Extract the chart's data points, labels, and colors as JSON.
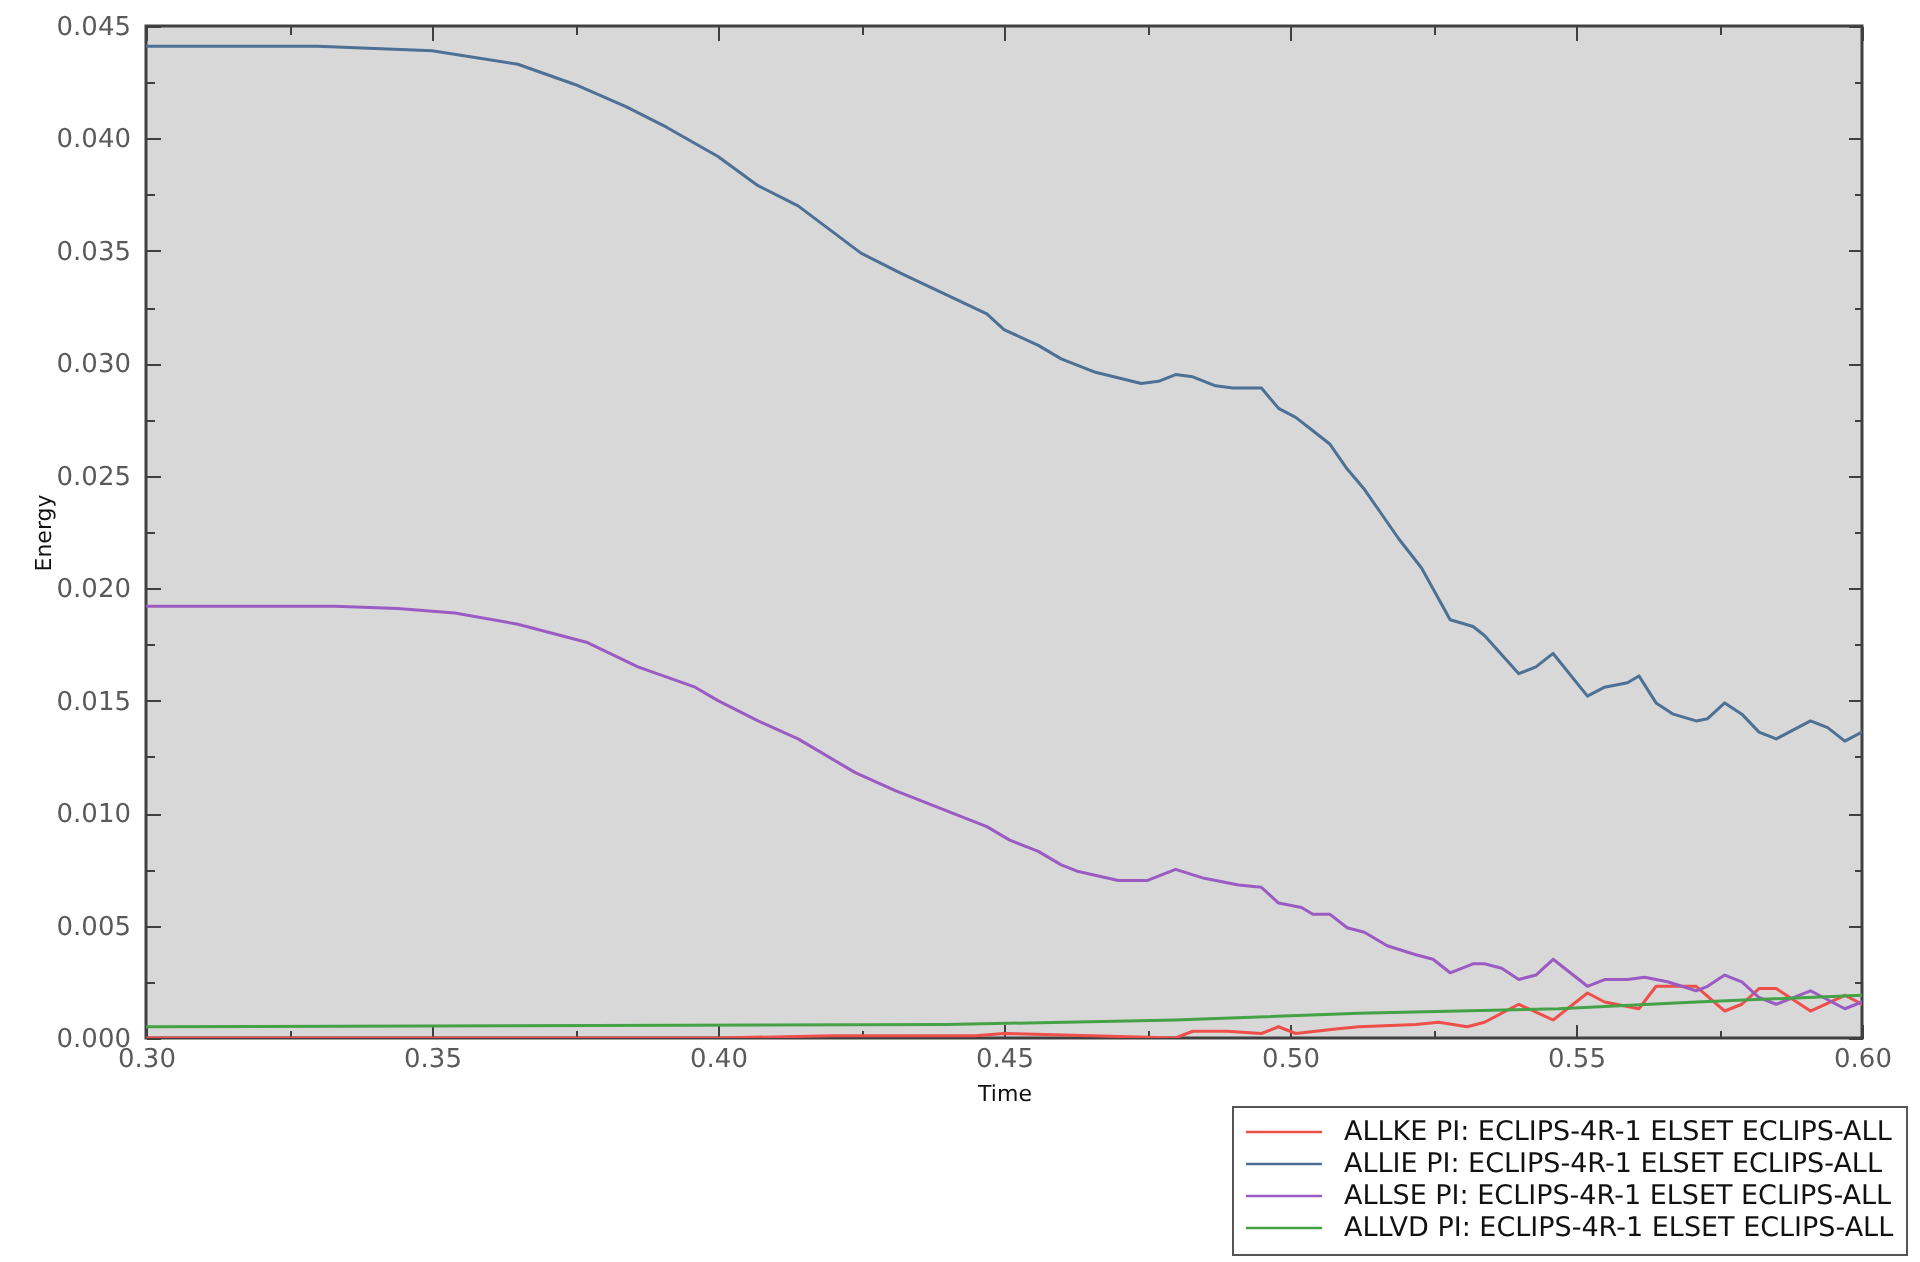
{
  "chart_data": {
    "type": "line",
    "xlabel": "Time",
    "ylabel": "Energy",
    "xlim": [
      0.3,
      0.6
    ],
    "ylim": [
      0,
      0.045
    ],
    "xticks": [
      {
        "value": 0.3,
        "label": "0.30"
      },
      {
        "value": 0.325,
        "label": null
      },
      {
        "value": 0.35,
        "label": "0.35"
      },
      {
        "value": 0.375,
        "label": null
      },
      {
        "value": 0.4,
        "label": "0.40"
      },
      {
        "value": 0.425,
        "label": null
      },
      {
        "value": 0.45,
        "label": "0.45"
      },
      {
        "value": 0.475,
        "label": null
      },
      {
        "value": 0.5,
        "label": "0.50"
      },
      {
        "value": 0.525,
        "label": null
      },
      {
        "value": 0.55,
        "label": "0.55"
      },
      {
        "value": 0.575,
        "label": null
      },
      {
        "value": 0.6,
        "label": "0.60"
      }
    ],
    "yticks": [
      {
        "value": 0,
        "label": "0.000"
      },
      {
        "value": 0.0025,
        "label": null
      },
      {
        "value": 0.005,
        "label": "0.005"
      },
      {
        "value": 0.0075,
        "label": null
      },
      {
        "value": 0.01,
        "label": "0.010"
      },
      {
        "value": 0.0125,
        "label": null
      },
      {
        "value": 0.015,
        "label": "0.015"
      },
      {
        "value": 0.0175,
        "label": null
      },
      {
        "value": 0.02,
        "label": "0.020"
      },
      {
        "value": 0.0225,
        "label": null
      },
      {
        "value": 0.025,
        "label": "0.025"
      },
      {
        "value": 0.0275,
        "label": null
      },
      {
        "value": 0.03,
        "label": "0.030"
      },
      {
        "value": 0.0325,
        "label": null
      },
      {
        "value": 0.035,
        "label": "0.035"
      },
      {
        "value": 0.0375,
        "label": null
      },
      {
        "value": 0.04,
        "label": "0.040"
      },
      {
        "value": 0.0425,
        "label": null
      },
      {
        "value": 0.045,
        "label": "0.045"
      }
    ],
    "legend": "bottom right",
    "marker": "none",
    "line_style": "solid",
    "series": [
      {
        "name": "ALLKE PI: ECLIPS-4R-1 ELSET ECLIPS-ALL",
        "color": "#ee4f4a",
        "x": [
          0.3,
          0.4,
          0.42,
          0.445,
          0.45,
          0.48,
          0.483,
          0.489,
          0.495,
          0.498,
          0.501,
          0.508,
          0.512,
          0.522,
          0.526,
          0.531,
          0.534,
          0.54,
          0.546,
          0.552,
          0.555,
          0.561,
          0.564,
          0.571,
          0.576,
          0.579,
          0.582,
          0.585,
          0.591,
          0.597,
          0.6
        ],
        "values": [
          0,
          0,
          0.0001,
          0.0001,
          0.0002,
          0,
          0.0003,
          0.0003,
          0.0002,
          0.0005,
          0.0002,
          0.0004,
          0.0005,
          0.0006,
          0.0007,
          0.0005,
          0.0007,
          0.0015,
          0.0008,
          0.002,
          0.0016,
          0.0013,
          0.0023,
          0.0023,
          0.0012,
          0.0015,
          0.0022,
          0.0022,
          0.0012,
          0.0019,
          0.0015
        ]
      },
      {
        "name": "ALLIE PI: ECLIPS-4R-1 ELSET ECLIPS-ALL",
        "color": "#4d7095",
        "x": [
          0.3,
          0.33,
          0.35,
          0.355,
          0.365,
          0.375,
          0.384,
          0.391,
          0.4,
          0.407,
          0.414,
          0.425,
          0.432,
          0.442,
          0.447,
          0.45,
          0.456,
          0.46,
          0.466,
          0.474,
          0.477,
          0.48,
          0.483,
          0.487,
          0.49,
          0.495,
          0.498,
          0.501,
          0.504,
          0.507,
          0.51,
          0.513,
          0.516,
          0.519,
          0.523,
          0.528,
          0.532,
          0.534,
          0.54,
          0.543,
          0.546,
          0.552,
          0.555,
          0.559,
          0.561,
          0.564,
          0.567,
          0.571,
          0.573,
          0.576,
          0.579,
          0.582,
          0.585,
          0.591,
          0.594,
          0.597,
          0.6
        ],
        "values": [
          0.0441,
          0.0441,
          0.0439,
          0.0437,
          0.0433,
          0.0424,
          0.0414,
          0.0405,
          0.0392,
          0.0379,
          0.037,
          0.0349,
          0.034,
          0.0328,
          0.0322,
          0.0315,
          0.0308,
          0.0302,
          0.0296,
          0.0291,
          0.0292,
          0.0295,
          0.0294,
          0.029,
          0.0289,
          0.0289,
          0.028,
          0.0276,
          0.027,
          0.0264,
          0.0253,
          0.0244,
          0.0233,
          0.0222,
          0.0209,
          0.0186,
          0.0183,
          0.0179,
          0.0162,
          0.0165,
          0.0171,
          0.0152,
          0.0156,
          0.0158,
          0.0161,
          0.0149,
          0.0144,
          0.0141,
          0.0142,
          0.0149,
          0.0144,
          0.0136,
          0.0133,
          0.0141,
          0.0138,
          0.0132,
          0.0136
        ]
      },
      {
        "name": "ALLSE PI: ECLIPS-4R-1 ELSET ECLIPS-ALL",
        "color": "#9a5cc2",
        "x": [
          0.3,
          0.333,
          0.344,
          0.354,
          0.365,
          0.377,
          0.386,
          0.396,
          0.4,
          0.407,
          0.414,
          0.424,
          0.431,
          0.435,
          0.442,
          0.447,
          0.451,
          0.456,
          0.46,
          0.463,
          0.47,
          0.475,
          0.48,
          0.485,
          0.491,
          0.495,
          0.498,
          0.502,
          0.504,
          0.507,
          0.51,
          0.513,
          0.517,
          0.522,
          0.525,
          0.528,
          0.532,
          0.534,
          0.537,
          0.54,
          0.543,
          0.546,
          0.552,
          0.555,
          0.559,
          0.562,
          0.566,
          0.571,
          0.573,
          0.576,
          0.579,
          0.582,
          0.585,
          0.591,
          0.594,
          0.597,
          0.6
        ],
        "values": [
          0.0192,
          0.0192,
          0.0191,
          0.0189,
          0.0184,
          0.0176,
          0.0165,
          0.0156,
          0.015,
          0.0141,
          0.0133,
          0.0118,
          0.011,
          0.0106,
          0.0099,
          0.0094,
          0.0088,
          0.0083,
          0.0077,
          0.0074,
          0.007,
          0.007,
          0.0075,
          0.0071,
          0.0068,
          0.0067,
          0.006,
          0.0058,
          0.0055,
          0.0055,
          0.0049,
          0.0047,
          0.0041,
          0.0037,
          0.0035,
          0.0029,
          0.0033,
          0.0033,
          0.0031,
          0.0026,
          0.0028,
          0.0035,
          0.0023,
          0.0026,
          0.0026,
          0.0027,
          0.0025,
          0.0021,
          0.0023,
          0.0028,
          0.0025,
          0.0018,
          0.0015,
          0.0021,
          0.0017,
          0.0013,
          0.0016
        ]
      },
      {
        "name": "ALLVD PI: ECLIPS-4R-1 ELSET ECLIPS-ALL",
        "color": "#45a246",
        "x": [
          0.3,
          0.44,
          0.48,
          0.512,
          0.547,
          0.571,
          0.6
        ],
        "values": [
          0.0005,
          0.0006,
          0.0008,
          0.0011,
          0.0013,
          0.0016,
          0.0019
        ]
      }
    ]
  }
}
